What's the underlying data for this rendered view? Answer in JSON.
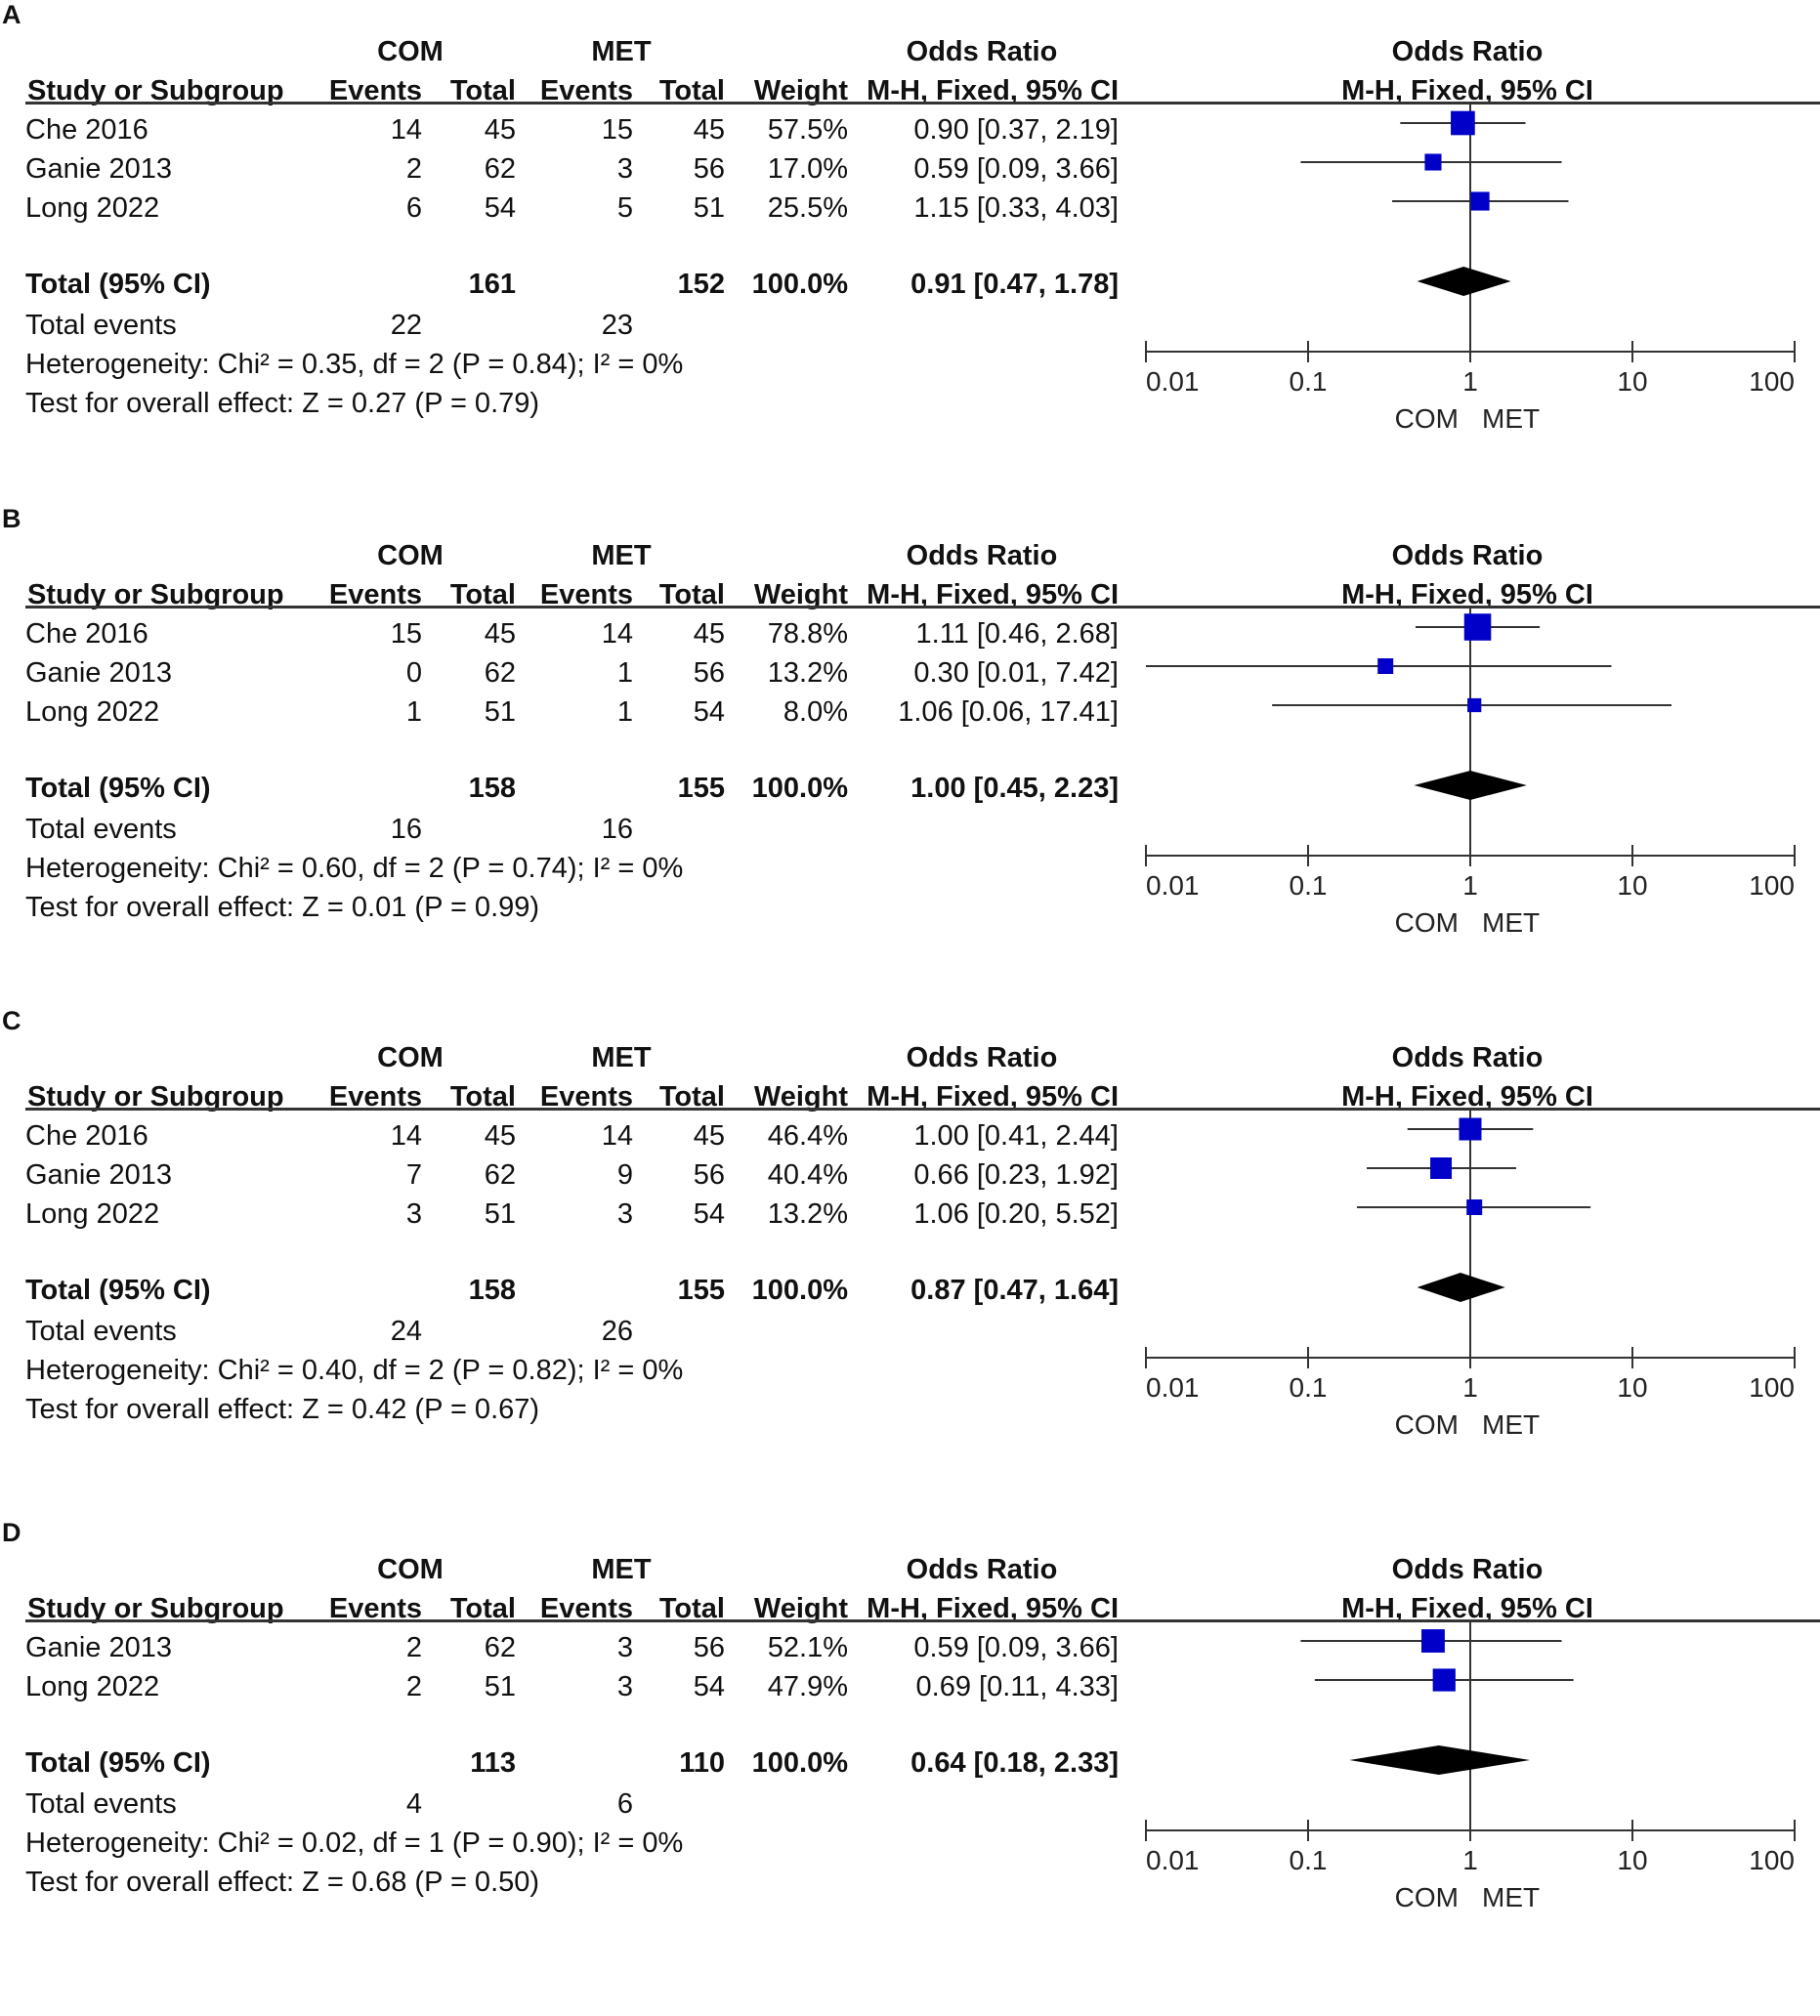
{
  "chart_data": [
    {
      "type": "forest",
      "panel": "A",
      "group1": "COM",
      "group2": "MET",
      "headers": {
        "study": "Study or Subgroup",
        "events": "Events",
        "total": "Total",
        "weight": "Weight",
        "or_title": "Odds Ratio",
        "or_method": "M-H, Fixed, 95% CI"
      },
      "studies": [
        {
          "name": "Che 2016",
          "e1": "14",
          "n1": "45",
          "e2": "15",
          "n2": "45",
          "weight": "57.5%",
          "ci_text": "0.90 [0.37, 2.19]",
          "or": 0.9,
          "lo": 0.37,
          "hi": 2.19,
          "w": 57.5
        },
        {
          "name": "Ganie 2013",
          "e1": "2",
          "n1": "62",
          "e2": "3",
          "n2": "56",
          "weight": "17.0%",
          "ci_text": "0.59 [0.09, 3.66]",
          "or": 0.59,
          "lo": 0.09,
          "hi": 3.66,
          "w": 17.0
        },
        {
          "name": "Long 2022",
          "e1": "6",
          "n1": "54",
          "e2": "5",
          "n2": "51",
          "weight": "25.5%",
          "ci_text": "1.15 [0.33, 4.03]",
          "or": 1.15,
          "lo": 0.33,
          "hi": 4.03,
          "w": 25.5
        }
      ],
      "total": {
        "label": "Total (95% CI)",
        "n1": "161",
        "n2": "152",
        "weight": "100.0%",
        "ci_text": "0.91 [0.47, 1.78]",
        "or": 0.91,
        "lo": 0.47,
        "hi": 1.78
      },
      "total_events": {
        "label": "Total events",
        "e1": "22",
        "e2": "23"
      },
      "heterogeneity": "Heterogeneity: Chi² = 0.35, df = 2 (P = 0.84); I² = 0%",
      "overall": "Test for overall effect: Z = 0.27 (P = 0.79)",
      "axis_ticks": [
        "0.01",
        "0.1",
        "1",
        "10",
        "100"
      ],
      "xlim": [
        0.01,
        100
      ],
      "favours_left": "COM",
      "favours_right": "MET"
    },
    {
      "type": "forest",
      "panel": "B",
      "group1": "COM",
      "group2": "MET",
      "headers": {
        "study": "Study or Subgroup",
        "events": "Events",
        "total": "Total",
        "weight": "Weight",
        "or_title": "Odds Ratio",
        "or_method": "M-H, Fixed, 95% CI"
      },
      "studies": [
        {
          "name": "Che 2016",
          "e1": "15",
          "n1": "45",
          "e2": "14",
          "n2": "45",
          "weight": "78.8%",
          "ci_text": "1.11 [0.46, 2.68]",
          "or": 1.11,
          "lo": 0.46,
          "hi": 2.68,
          "w": 78.8
        },
        {
          "name": "Ganie 2013",
          "e1": "0",
          "n1": "62",
          "e2": "1",
          "n2": "56",
          "weight": "13.2%",
          "ci_text": "0.30 [0.01, 7.42]",
          "or": 0.3,
          "lo": 0.01,
          "hi": 7.42,
          "w": 13.2
        },
        {
          "name": "Long 2022",
          "e1": "1",
          "n1": "51",
          "e2": "1",
          "n2": "54",
          "weight": "8.0%",
          "ci_text": "1.06 [0.06, 17.41]",
          "or": 1.06,
          "lo": 0.06,
          "hi": 17.41,
          "w": 8.0
        }
      ],
      "total": {
        "label": "Total (95% CI)",
        "n1": "158",
        "n2": "155",
        "weight": "100.0%",
        "ci_text": "1.00 [0.45, 2.23]",
        "or": 1.0,
        "lo": 0.45,
        "hi": 2.23
      },
      "total_events": {
        "label": "Total events",
        "e1": "16",
        "e2": "16"
      },
      "heterogeneity": "Heterogeneity: Chi² = 0.60, df = 2 (P = 0.74); I² = 0%",
      "overall": "Test for overall effect: Z = 0.01 (P = 0.99)",
      "axis_ticks": [
        "0.01",
        "0.1",
        "1",
        "10",
        "100"
      ],
      "xlim": [
        0.01,
        100
      ],
      "favours_left": "COM",
      "favours_right": "MET"
    },
    {
      "type": "forest",
      "panel": "C",
      "group1": "COM",
      "group2": "MET",
      "headers": {
        "study": "Study or Subgroup",
        "events": "Events",
        "total": "Total",
        "weight": "Weight",
        "or_title": "Odds Ratio",
        "or_method": "M-H, Fixed, 95% CI"
      },
      "studies": [
        {
          "name": "Che 2016",
          "e1": "14",
          "n1": "45",
          "e2": "14",
          "n2": "45",
          "weight": "46.4%",
          "ci_text": "1.00 [0.41, 2.44]",
          "or": 1.0,
          "lo": 0.41,
          "hi": 2.44,
          "w": 46.4
        },
        {
          "name": "Ganie 2013",
          "e1": "7",
          "n1": "62",
          "e2": "9",
          "n2": "56",
          "weight": "40.4%",
          "ci_text": "0.66 [0.23, 1.92]",
          "or": 0.66,
          "lo": 0.23,
          "hi": 1.92,
          "w": 40.4
        },
        {
          "name": "Long 2022",
          "e1": "3",
          "n1": "51",
          "e2": "3",
          "n2": "54",
          "weight": "13.2%",
          "ci_text": "1.06 [0.20, 5.52]",
          "or": 1.06,
          "lo": 0.2,
          "hi": 5.52,
          "w": 13.2
        }
      ],
      "total": {
        "label": "Total (95% CI)",
        "n1": "158",
        "n2": "155",
        "weight": "100.0%",
        "ci_text": "0.87 [0.47, 1.64]",
        "or": 0.87,
        "lo": 0.47,
        "hi": 1.64
      },
      "total_events": {
        "label": "Total events",
        "e1": "24",
        "e2": "26"
      },
      "heterogeneity": "Heterogeneity: Chi² = 0.40, df = 2 (P = 0.82); I² = 0%",
      "overall": "Test for overall effect: Z = 0.42 (P = 0.67)",
      "axis_ticks": [
        "0.01",
        "0.1",
        "1",
        "10",
        "100"
      ],
      "xlim": [
        0.01,
        100
      ],
      "favours_left": "COM",
      "favours_right": "MET"
    },
    {
      "type": "forest",
      "panel": "D",
      "group1": "COM",
      "group2": "MET",
      "headers": {
        "study": "Study or Subgroup",
        "events": "Events",
        "total": "Total",
        "weight": "Weight",
        "or_title": "Odds Ratio",
        "or_method": "M-H, Fixed, 95% CI"
      },
      "studies": [
        {
          "name": "Ganie 2013",
          "e1": "2",
          "n1": "62",
          "e2": "3",
          "n2": "56",
          "weight": "52.1%",
          "ci_text": "0.59 [0.09, 3.66]",
          "or": 0.59,
          "lo": 0.09,
          "hi": 3.66,
          "w": 52.1
        },
        {
          "name": "Long 2022",
          "e1": "2",
          "n1": "51",
          "e2": "3",
          "n2": "54",
          "weight": "47.9%",
          "ci_text": "0.69 [0.11, 4.33]",
          "or": 0.69,
          "lo": 0.11,
          "hi": 4.33,
          "w": 47.9
        }
      ],
      "total": {
        "label": "Total (95% CI)",
        "n1": "113",
        "n2": "110",
        "weight": "100.0%",
        "ci_text": "0.64 [0.18, 2.33]",
        "or": 0.64,
        "lo": 0.18,
        "hi": 2.33
      },
      "total_events": {
        "label": "Total events",
        "e1": "4",
        "e2": "6"
      },
      "heterogeneity": "Heterogeneity: Chi² = 0.02, df = 1 (P = 0.90); I² = 0%",
      "overall": "Test for overall effect: Z = 0.68 (P = 0.50)",
      "axis_ticks": [
        "0.01",
        "0.1",
        "1",
        "10",
        "100"
      ],
      "xlim": [
        0.01,
        100
      ],
      "favours_left": "COM",
      "favours_right": "MET"
    }
  ],
  "colors": {
    "square": "#0000c8",
    "diamond": "#000000",
    "line": "#333333"
  }
}
